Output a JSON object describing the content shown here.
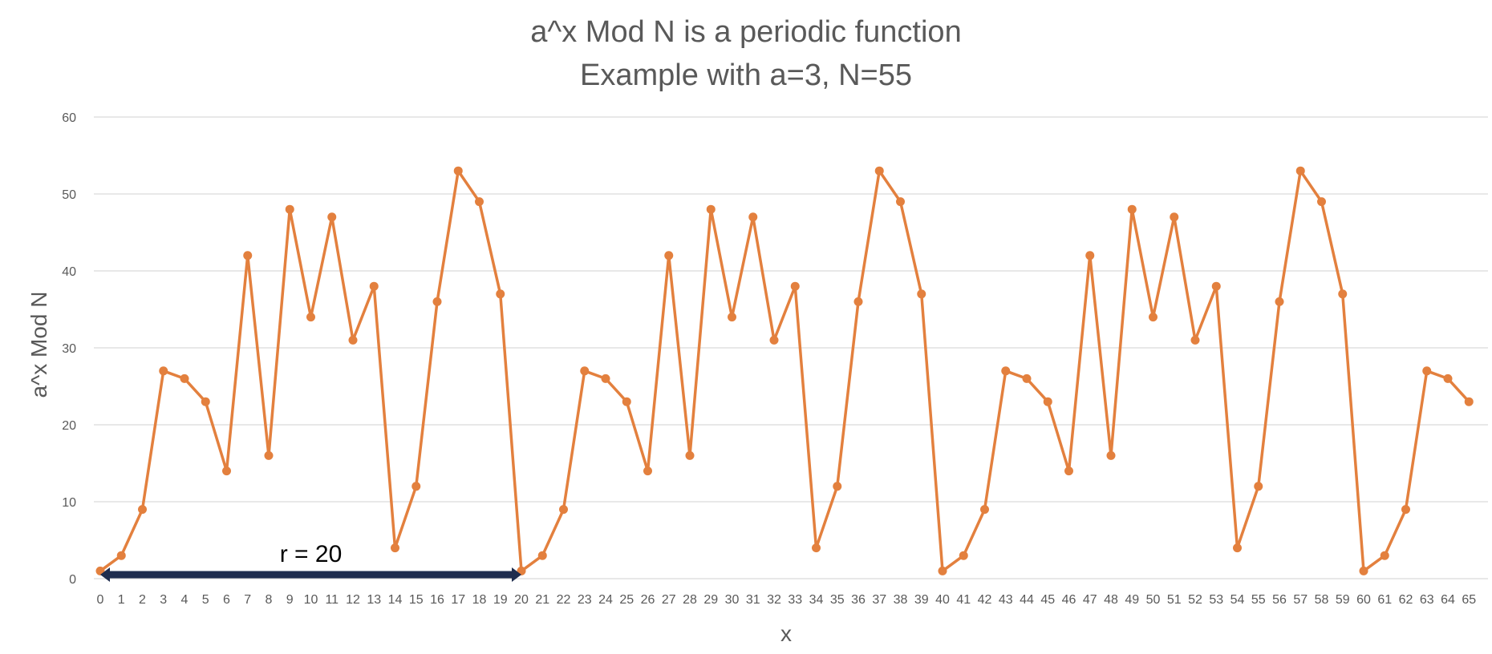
{
  "chart_data": {
    "type": "line",
    "title": "a^x Mod N is a periodic function",
    "subtitle": "Example with a=3, N=55",
    "xlabel": "x",
    "ylabel": "a^x Mod N",
    "ylim": [
      0,
      60
    ],
    "yticks": [
      "0",
      "10",
      "20",
      "30",
      "40",
      "50",
      "60"
    ],
    "grid": true,
    "x": [
      0,
      1,
      2,
      3,
      4,
      5,
      6,
      7,
      8,
      9,
      10,
      11,
      12,
      13,
      14,
      15,
      16,
      17,
      18,
      19,
      20,
      21,
      22,
      23,
      24,
      25,
      26,
      27,
      28,
      29,
      30,
      31,
      32,
      33,
      34,
      35,
      36,
      37,
      38,
      39,
      40,
      41,
      42,
      43,
      44,
      45,
      46,
      47,
      48,
      49,
      50,
      51,
      52,
      53,
      54,
      55,
      56,
      57,
      58,
      59,
      60,
      61,
      62,
      63,
      64,
      65
    ],
    "series": [
      {
        "values": [
          1,
          3,
          9,
          27,
          26,
          23,
          14,
          42,
          16,
          48,
          34,
          47,
          31,
          38,
          4,
          12,
          36,
          53,
          49,
          37,
          1,
          3,
          9,
          27,
          26,
          23,
          14,
          42,
          16,
          48,
          34,
          47,
          31,
          38,
          4,
          12,
          36,
          53,
          49,
          37,
          1,
          3,
          9,
          27,
          26,
          23,
          14,
          42,
          16,
          48,
          34,
          47,
          31,
          38,
          4,
          12,
          36,
          53,
          49,
          37,
          1,
          3,
          9,
          27,
          26,
          23
        ]
      }
    ],
    "annotation": {
      "text": "r = 20",
      "from_x": 0,
      "to_x": 20,
      "y": 0
    },
    "colors": {
      "series": "#E3803E",
      "arrow": "#1F2D4E",
      "grid": "#D9D9D9",
      "text": "#595959"
    }
  }
}
